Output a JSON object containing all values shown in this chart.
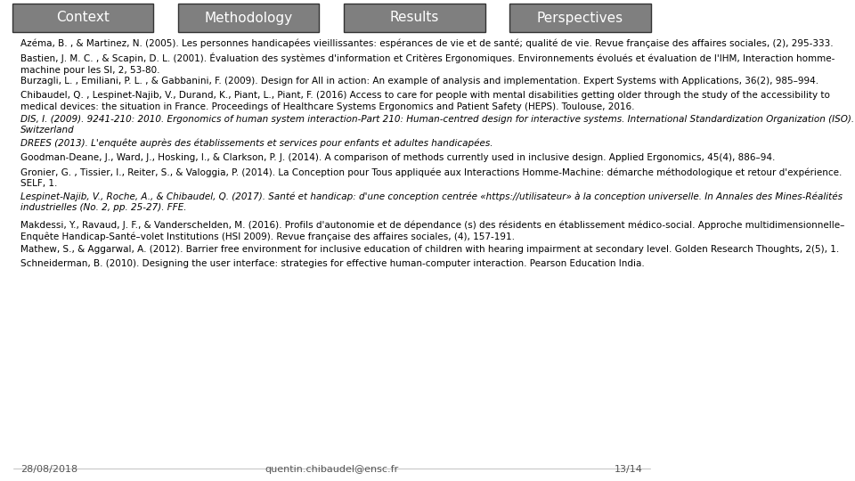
{
  "nav_tabs": [
    "Context",
    "Methodology",
    "Results",
    "Perspectives"
  ],
  "nav_tab_colors": [
    "#7f7f7f",
    "#7f7f7f",
    "#7f7f7f",
    "#7f7f7f"
  ],
  "active_tab_index": 3,
  "background_color": "#ffffff",
  "tab_text_color": "#ffffff",
  "body_text_color": "#000000",
  "references": [
    {
      "text": "Azéma, B. , & Martinez, N. (2005). Les personnes handicapées vieillissantes: espérances de vie et de santé; qualité de vie. Revue française des affaires sociales, (2), 295-333.",
      "italic": false
    },
    {
      "text": "Bastien, J. M. C. , & Scapin, D. L. (2001). Évaluation des systèmes d'information et Critères Ergonomiques. Environnements évolués et évaluation de l'IHM, Interaction homme-machine pour les SI, 2, 53-80.",
      "italic_part": "Environnements évolués et évaluation de l'IHM, Interaction homme-machine pour les SI,",
      "italic": false
    },
    {
      "text": "Burzagli, L. , Emiliani, P. L. , & Gabbanini, F. (2009). Design for All in action: An example of analysis and implementation. Expert Systems with Applications, 36(2), 985–994.",
      "italic": false
    },
    {
      "text": "Chibaudel, Q. , Lespinet-Najib, V., Durand, K., Piant, L., Piant, F. (2016) Access to care for people with mental disabilities getting older through the study of the accessibility to medical devices: the situation in France. Proceedings of Healthcare Systems Ergonomics and Patient Safety (HEPS). Toulouse, 2016.",
      "italic": false
    },
    {
      "text": "DIS, I. (2009). 9241-210: 2010. Ergonomics of human system interaction-Part 210: Human-centred design for interactive systems. International Standardization Organization (ISO). Switzerland",
      "italic": true
    },
    {
      "text": "DREES (2013). L'enquête auprès des établissements et services pour enfants et adultes handicapées.",
      "italic": true
    },
    {
      "text": "Goodman-Deane, J., Ward, J., Hosking, I., & Clarkson, P. J. (2014). A comparison of methods currently used in inclusive design. Applied Ergonomics, 45(4), 886–94.",
      "italic": false
    },
    {
      "text": "Gronier, G. , Tissier, I., Reiter, S., & Valoggia, P. (2014). La Conception pour Tous appliquée aux Interactions Homme-Machine: démarche méthodologique et retour d'expérience. SELF, 1.",
      "italic": false
    },
    {
      "text": "Lespinet-Najib, V., Roche, A., & Chibaudel, Q. (2017). Santé et handicap: d'une conception centrée «https://utilisateur» à la conception universelle. In Annales des Mines-Réalités industrielles (No. 2, pp. 25-27). FFE.",
      "italic": true
    },
    {
      "text": "Makdessi, Y., Ravaud, J. F., & Vanderschelden, M. (2016). Profils d'autonomie et de dépendance (s) des résidents en établissement médico-social. Approche multidimensionnelle–Enquête Handicap-Santé–volet Institutions (HSI 2009). Revue française des affaires sociales, (4), 157-191.",
      "italic": false
    },
    {
      "text": "Mathew, S., & Aggarwal, A. (2012). Barrier free environment for inclusive education of children with hearing impairment at secondary level. Golden Research Thoughts, 2(5), 1.",
      "italic": false
    },
    {
      "text": "Schneiderman, B. (2010). Designing the user interface: strategies for effective human-computer interaction. Pearson Education India.",
      "italic": false
    }
  ],
  "footer_left": "28/08/2018",
  "footer_center": "quentin.chibaudel@ensc.fr",
  "footer_right": "13/14",
  "font_size_refs": 7.5,
  "font_size_tab": 11,
  "font_size_footer": 8
}
